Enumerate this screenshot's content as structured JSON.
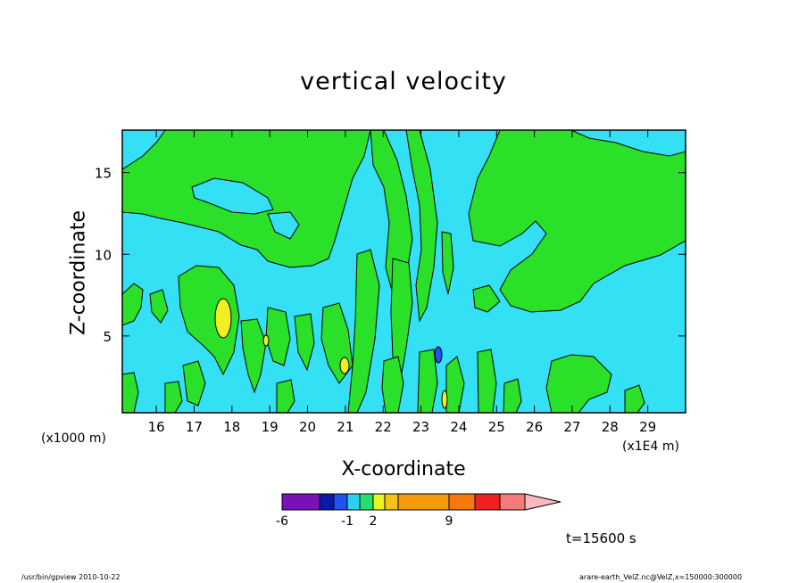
{
  "chart_data": {
    "type": "heatmap",
    "title": "vertical velocity",
    "xlabel": "X-coordinate",
    "ylabel": "Z-coordinate",
    "x_unit_left": "(x1000 m)",
    "x_unit_right": "(x1E4 m)",
    "x_ticks": [
      "16",
      "17",
      "18",
      "19",
      "20",
      "21",
      "22",
      "23",
      "24",
      "25",
      "26",
      "27",
      "28",
      "29"
    ],
    "y_ticks": [
      "5",
      "10",
      "15"
    ],
    "xlim": [
      15.1,
      30
    ],
    "ylim": [
      0.3,
      17.6
    ],
    "colorbar": {
      "tick_labels": [
        "-6",
        "-1",
        "2",
        "9"
      ],
      "colors": [
        "#7b10b8",
        "#0a1aa8",
        "#1f52f0",
        "#2ad0f0",
        "#26e06c",
        "#e8f520",
        "#f5c21a",
        "#f59a0a",
        "#f57a0a",
        "#f02020",
        "#f57a7a"
      ],
      "extend_color": "#f7b8c0"
    },
    "regions": [
      {
        "level": "positive",
        "color": "#2ae028",
        "description": "upper-left and upper-right updraft areas"
      },
      {
        "level": "zero-band",
        "color": "#33e0f4",
        "description": "background"
      },
      {
        "level": "max",
        "color": "#f0f020",
        "description": "small cores near x=17.7, z=6"
      }
    ]
  },
  "annotations": {
    "timestamp": "t=15600 s",
    "footer_left": "/usr/bin/gpview  2010-10-22",
    "footer_right": "arare-earth_VelZ.nc@VelZ,x=150000:300000"
  }
}
